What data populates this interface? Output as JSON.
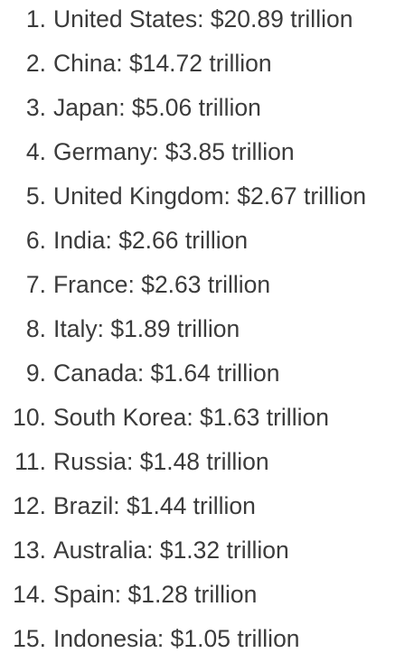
{
  "list": {
    "items": [
      {
        "num": "1.",
        "text": "United States: $20.89 trillion"
      },
      {
        "num": "2.",
        "text": "China: $14.72 trillion"
      },
      {
        "num": "3.",
        "text": "Japan: $5.06 trillion"
      },
      {
        "num": "4.",
        "text": "Germany: $3.85 trillion"
      },
      {
        "num": "5.",
        "text": "United Kingdom: $2.67 trillion"
      },
      {
        "num": "6.",
        "text": "India: $2.66 trillion"
      },
      {
        "num": "7.",
        "text": "France: $2.63 trillion"
      },
      {
        "num": "8.",
        "text": "Italy: $1.89 trillion"
      },
      {
        "num": "9.",
        "text": "Canada: $1.64 trillion"
      },
      {
        "num": "10.",
        "text": "South Korea: $1.63 trillion"
      },
      {
        "num": "11.",
        "text": "Russia: $1.48 trillion"
      },
      {
        "num": "12.",
        "text": "Brazil: $1.44 trillion"
      },
      {
        "num": "13.",
        "text": "Australia: $1.32 trillion"
      },
      {
        "num": "14.",
        "text": "Spain: $1.28 trillion"
      },
      {
        "num": "15.",
        "text": "Indonesia: $1.05 trillion"
      }
    ]
  }
}
